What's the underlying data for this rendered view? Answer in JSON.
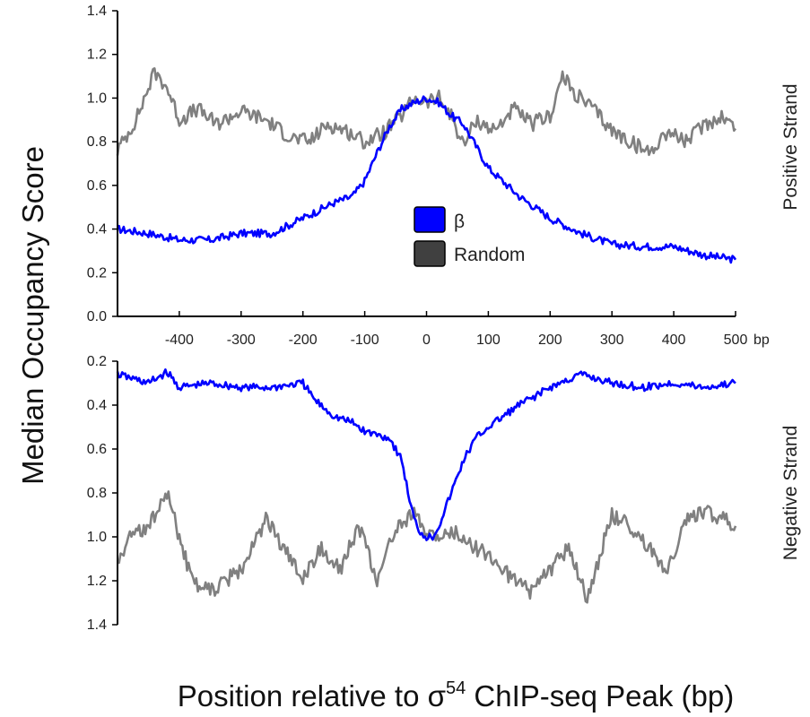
{
  "chart_data": {
    "type": "line",
    "ylabel": "Median Occupancy Score",
    "xlabel": {
      "prefix": "Position relative to ",
      "symbol": "σ",
      "superscript": "54",
      "suffix": " ChIP-seq Peak (bp)"
    },
    "x_unit": "bp",
    "x_ticks": [
      -400,
      -300,
      -200,
      -100,
      0,
      100,
      200,
      300,
      400,
      500
    ],
    "xlim": [
      -500,
      500
    ],
    "legend": {
      "placement": "center",
      "entries": [
        {
          "label": "β",
          "color": "#0000ff"
        },
        {
          "label": "Random",
          "color": "#404040"
        }
      ]
    },
    "panels": [
      {
        "strand_label": "Positive Strand",
        "y_ticks": [
          "0.0",
          "0.2",
          "0.4",
          "0.6",
          "0.8",
          "1.0",
          "1.2",
          "1.4"
        ],
        "ylim": [
          0,
          1.4
        ],
        "y_inverted": false,
        "series": [
          {
            "name": "β",
            "color": "#0000ff",
            "x": [
              -500,
              -450,
              -400,
              -350,
              -300,
              -250,
              -200,
              -150,
              -120,
              -100,
              -80,
              -60,
              -40,
              -20,
              0,
              20,
              40,
              60,
              80,
              100,
              150,
              200,
              250,
              300,
              350,
              400,
              450,
              500
            ],
            "y": [
              0.4,
              0.38,
              0.35,
              0.35,
              0.38,
              0.38,
              0.45,
              0.52,
              0.55,
              0.62,
              0.75,
              0.87,
              0.95,
              0.98,
              1.0,
              0.98,
              0.92,
              0.88,
              0.78,
              0.68,
              0.55,
              0.45,
              0.38,
              0.33,
              0.32,
              0.32,
              0.28,
              0.26
            ]
          },
          {
            "name": "Random",
            "color": "#808080",
            "x": [
              -500,
              -470,
              -440,
              -420,
              -400,
              -370,
              -340,
              -300,
              -260,
              -220,
              -190,
              -160,
              -130,
              -100,
              -70,
              -40,
              -20,
              0,
              20,
              40,
              60,
              80,
              110,
              140,
              170,
              200,
              220,
              240,
              270,
              300,
              330,
              360,
              390,
              420,
              450,
              480,
              500
            ],
            "y": [
              0.76,
              0.9,
              1.12,
              1.05,
              0.9,
              0.95,
              0.88,
              0.94,
              0.9,
              0.82,
              0.8,
              0.88,
              0.85,
              0.8,
              0.84,
              0.92,
              1.0,
              0.98,
              1.0,
              0.92,
              0.78,
              0.9,
              0.85,
              0.95,
              0.88,
              0.92,
              1.1,
              1.02,
              0.95,
              0.85,
              0.8,
              0.75,
              0.85,
              0.8,
              0.88,
              0.92,
              0.86
            ]
          }
        ]
      },
      {
        "strand_label": "Negative Strand",
        "y_ticks": [
          "0.2",
          "0.4",
          "0.6",
          "0.8",
          "1.0",
          "1.2",
          "1.4"
        ],
        "ylim": [
          0.2,
          1.4
        ],
        "y_inverted": true,
        "series": [
          {
            "name": "β",
            "color": "#0000ff",
            "x": [
              -500,
              -450,
              -420,
              -400,
              -350,
              -300,
              -250,
              -200,
              -180,
              -150,
              -120,
              -100,
              -60,
              -40,
              -30,
              -20,
              -10,
              0,
              10,
              20,
              40,
              60,
              80,
              100,
              150,
              200,
              250,
              300,
              350,
              400,
              450,
              500
            ],
            "y": [
              0.26,
              0.3,
              0.25,
              0.32,
              0.3,
              0.32,
              0.32,
              0.3,
              0.38,
              0.45,
              0.48,
              0.52,
              0.55,
              0.65,
              0.8,
              0.92,
              0.98,
              1.0,
              1.0,
              0.95,
              0.8,
              0.65,
              0.55,
              0.5,
              0.4,
              0.32,
              0.26,
              0.3,
              0.32,
              0.3,
              0.32,
              0.3
            ]
          },
          {
            "name": "Random",
            "color": "#808080",
            "x": [
              -500,
              -480,
              -450,
              -420,
              -400,
              -380,
              -350,
              -300,
              -260,
              -220,
              -200,
              -170,
              -140,
              -110,
              -80,
              -50,
              -20,
              0,
              20,
              50,
              80,
              110,
              140,
              170,
              200,
              230,
              260,
              300,
              330,
              360,
              390,
              420,
              450,
              480,
              500
            ],
            "y": [
              1.12,
              1.0,
              0.95,
              0.8,
              1.0,
              1.2,
              1.25,
              1.15,
              0.92,
              1.1,
              1.2,
              1.05,
              1.15,
              0.95,
              1.2,
              0.95,
              0.9,
              0.98,
              1.0,
              0.98,
              1.05,
              1.1,
              1.2,
              1.25,
              1.15,
              1.05,
              1.28,
              0.9,
              0.95,
              1.05,
              1.15,
              0.92,
              0.88,
              0.92,
              0.95
            ]
          }
        ]
      }
    ]
  }
}
